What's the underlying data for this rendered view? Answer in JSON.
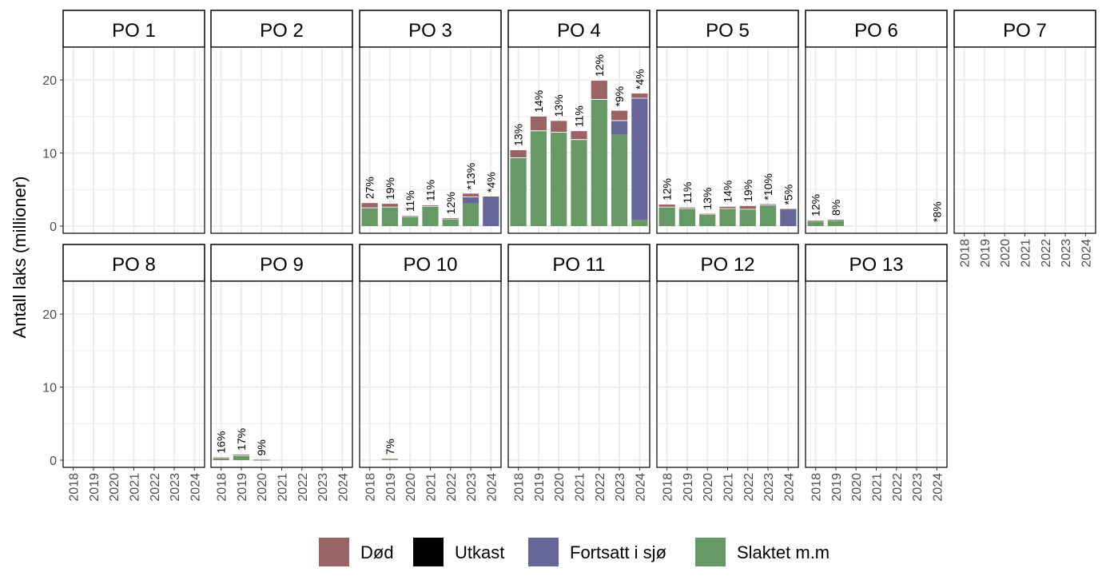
{
  "chart_data": {
    "type": "bar",
    "stacked": true,
    "ylabel": "Antall laks (millioner)",
    "ylim": [
      0,
      24.5
    ],
    "yticks": [
      0,
      10,
      20
    ],
    "years": [
      "2018",
      "2019",
      "2020",
      "2021",
      "2022",
      "2023",
      "2024"
    ],
    "series_names": [
      "Død",
      "Utkast",
      "Fortsatt i sjø",
      "Slaktet m.m"
    ],
    "colors": {
      "Død": "#9b6464",
      "Utkast": "#000000",
      "Fortsatt i sjø": "#666699",
      "Slaktet m.m": "#669966"
    },
    "panels": [
      {
        "label": "PO 1",
        "bars": []
      },
      {
        "label": "PO 2",
        "bars": []
      },
      {
        "label": "PO 3",
        "bars": [
          {
            "year": "2018",
            "slaktet": 2.5,
            "sjo": 0,
            "utkast": 0.05,
            "dod": 0.6,
            "pct": "27%"
          },
          {
            "year": "2019",
            "slaktet": 2.6,
            "sjo": 0,
            "utkast": 0.05,
            "dod": 0.4,
            "pct": "19%"
          },
          {
            "year": "2020",
            "slaktet": 1.3,
            "sjo": 0,
            "utkast": 0.03,
            "dod": 0.05,
            "pct": "11%"
          },
          {
            "year": "2021",
            "slaktet": 2.7,
            "sjo": 0,
            "utkast": 0.05,
            "dod": 0.1,
            "pct": "11%"
          },
          {
            "year": "2022",
            "slaktet": 1.0,
            "sjo": 0,
            "utkast": 0.02,
            "dod": 0.05,
            "pct": "12%"
          },
          {
            "year": "2023",
            "slaktet": 3.1,
            "sjo": 0.9,
            "utkast": 0.05,
            "dod": 0.4,
            "pct": "*13%"
          },
          {
            "year": "2024",
            "slaktet": 0,
            "sjo": 4.0,
            "utkast": 0,
            "dod": 0.05,
            "pct": "*4%"
          }
        ]
      },
      {
        "label": "PO 4",
        "bars": [
          {
            "year": "2018",
            "slaktet": 9.3,
            "sjo": 0,
            "utkast": 0.1,
            "dod": 1.0,
            "pct": "13%"
          },
          {
            "year": "2019",
            "slaktet": 13.0,
            "sjo": 0,
            "utkast": 0.1,
            "dod": 1.9,
            "pct": "14%"
          },
          {
            "year": "2020",
            "slaktet": 12.8,
            "sjo": 0,
            "utkast": 0.1,
            "dod": 1.5,
            "pct": "13%"
          },
          {
            "year": "2021",
            "slaktet": 11.8,
            "sjo": 0,
            "utkast": 0.1,
            "dod": 1.1,
            "pct": "11%"
          },
          {
            "year": "2022",
            "slaktet": 17.3,
            "sjo": 0,
            "utkast": 0.1,
            "dod": 2.5,
            "pct": "12%"
          },
          {
            "year": "2023",
            "slaktet": 12.5,
            "sjo": 1.9,
            "utkast": 0.1,
            "dod": 1.3,
            "pct": "*9%"
          },
          {
            "year": "2024",
            "slaktet": 0.8,
            "sjo": 16.7,
            "utkast": 0.05,
            "dod": 0.6,
            "pct": "*4%"
          }
        ]
      },
      {
        "label": "PO 5",
        "bars": [
          {
            "year": "2018",
            "slaktet": 2.6,
            "sjo": 0,
            "utkast": 0.05,
            "dod": 0.3,
            "pct": "12%"
          },
          {
            "year": "2019",
            "slaktet": 2.4,
            "sjo": 0,
            "utkast": 0.05,
            "dod": 0.1,
            "pct": "11%"
          },
          {
            "year": "2020",
            "slaktet": 1.6,
            "sjo": 0,
            "utkast": 0.03,
            "dod": 0.05,
            "pct": "13%"
          },
          {
            "year": "2021",
            "slaktet": 2.4,
            "sjo": 0,
            "utkast": 0.05,
            "dod": 0.2,
            "pct": "14%"
          },
          {
            "year": "2022",
            "slaktet": 2.3,
            "sjo": 0,
            "utkast": 0.05,
            "dod": 0.4,
            "pct": "19%"
          },
          {
            "year": "2023",
            "slaktet": 2.8,
            "sjo": 0.05,
            "utkast": 0.05,
            "dod": 0.1,
            "pct": "*10%"
          },
          {
            "year": "2024",
            "slaktet": 0,
            "sjo": 2.3,
            "utkast": 0,
            "dod": 0.05,
            "pct": "*5%"
          }
        ]
      },
      {
        "label": "PO 6",
        "bars": [
          {
            "year": "2018",
            "slaktet": 0.7,
            "sjo": 0,
            "utkast": 0.02,
            "dod": 0.05,
            "pct": "12%"
          },
          {
            "year": "2019",
            "slaktet": 0.8,
            "sjo": 0,
            "utkast": 0.02,
            "dod": 0.05,
            "pct": "8%"
          },
          {
            "year": "2024",
            "slaktet": 0,
            "sjo": 0,
            "utkast": 0,
            "dod": 0,
            "pct": "*8%"
          }
        ]
      },
      {
        "label": "PO 7",
        "bars": []
      },
      {
        "label": "PO 8",
        "bars": []
      },
      {
        "label": "PO 9",
        "bars": [
          {
            "year": "2018",
            "slaktet": 0.3,
            "sjo": 0,
            "utkast": 0.02,
            "dod": 0.05,
            "pct": "16%"
          },
          {
            "year": "2019",
            "slaktet": 0.65,
            "sjo": 0,
            "utkast": 0.02,
            "dod": 0.1,
            "pct": "17%"
          },
          {
            "year": "2020",
            "slaktet": 0.05,
            "sjo": 0,
            "utkast": 0,
            "dod": 0.01,
            "pct": "9%"
          }
        ]
      },
      {
        "label": "PO 10",
        "bars": [
          {
            "year": "2019",
            "slaktet": 0.15,
            "sjo": 0,
            "utkast": 0.01,
            "dod": 0.02,
            "pct": "7%"
          }
        ]
      },
      {
        "label": "PO 11",
        "bars": []
      },
      {
        "label": "PO 12",
        "bars": []
      },
      {
        "label": "PO 13",
        "bars": []
      }
    ]
  }
}
